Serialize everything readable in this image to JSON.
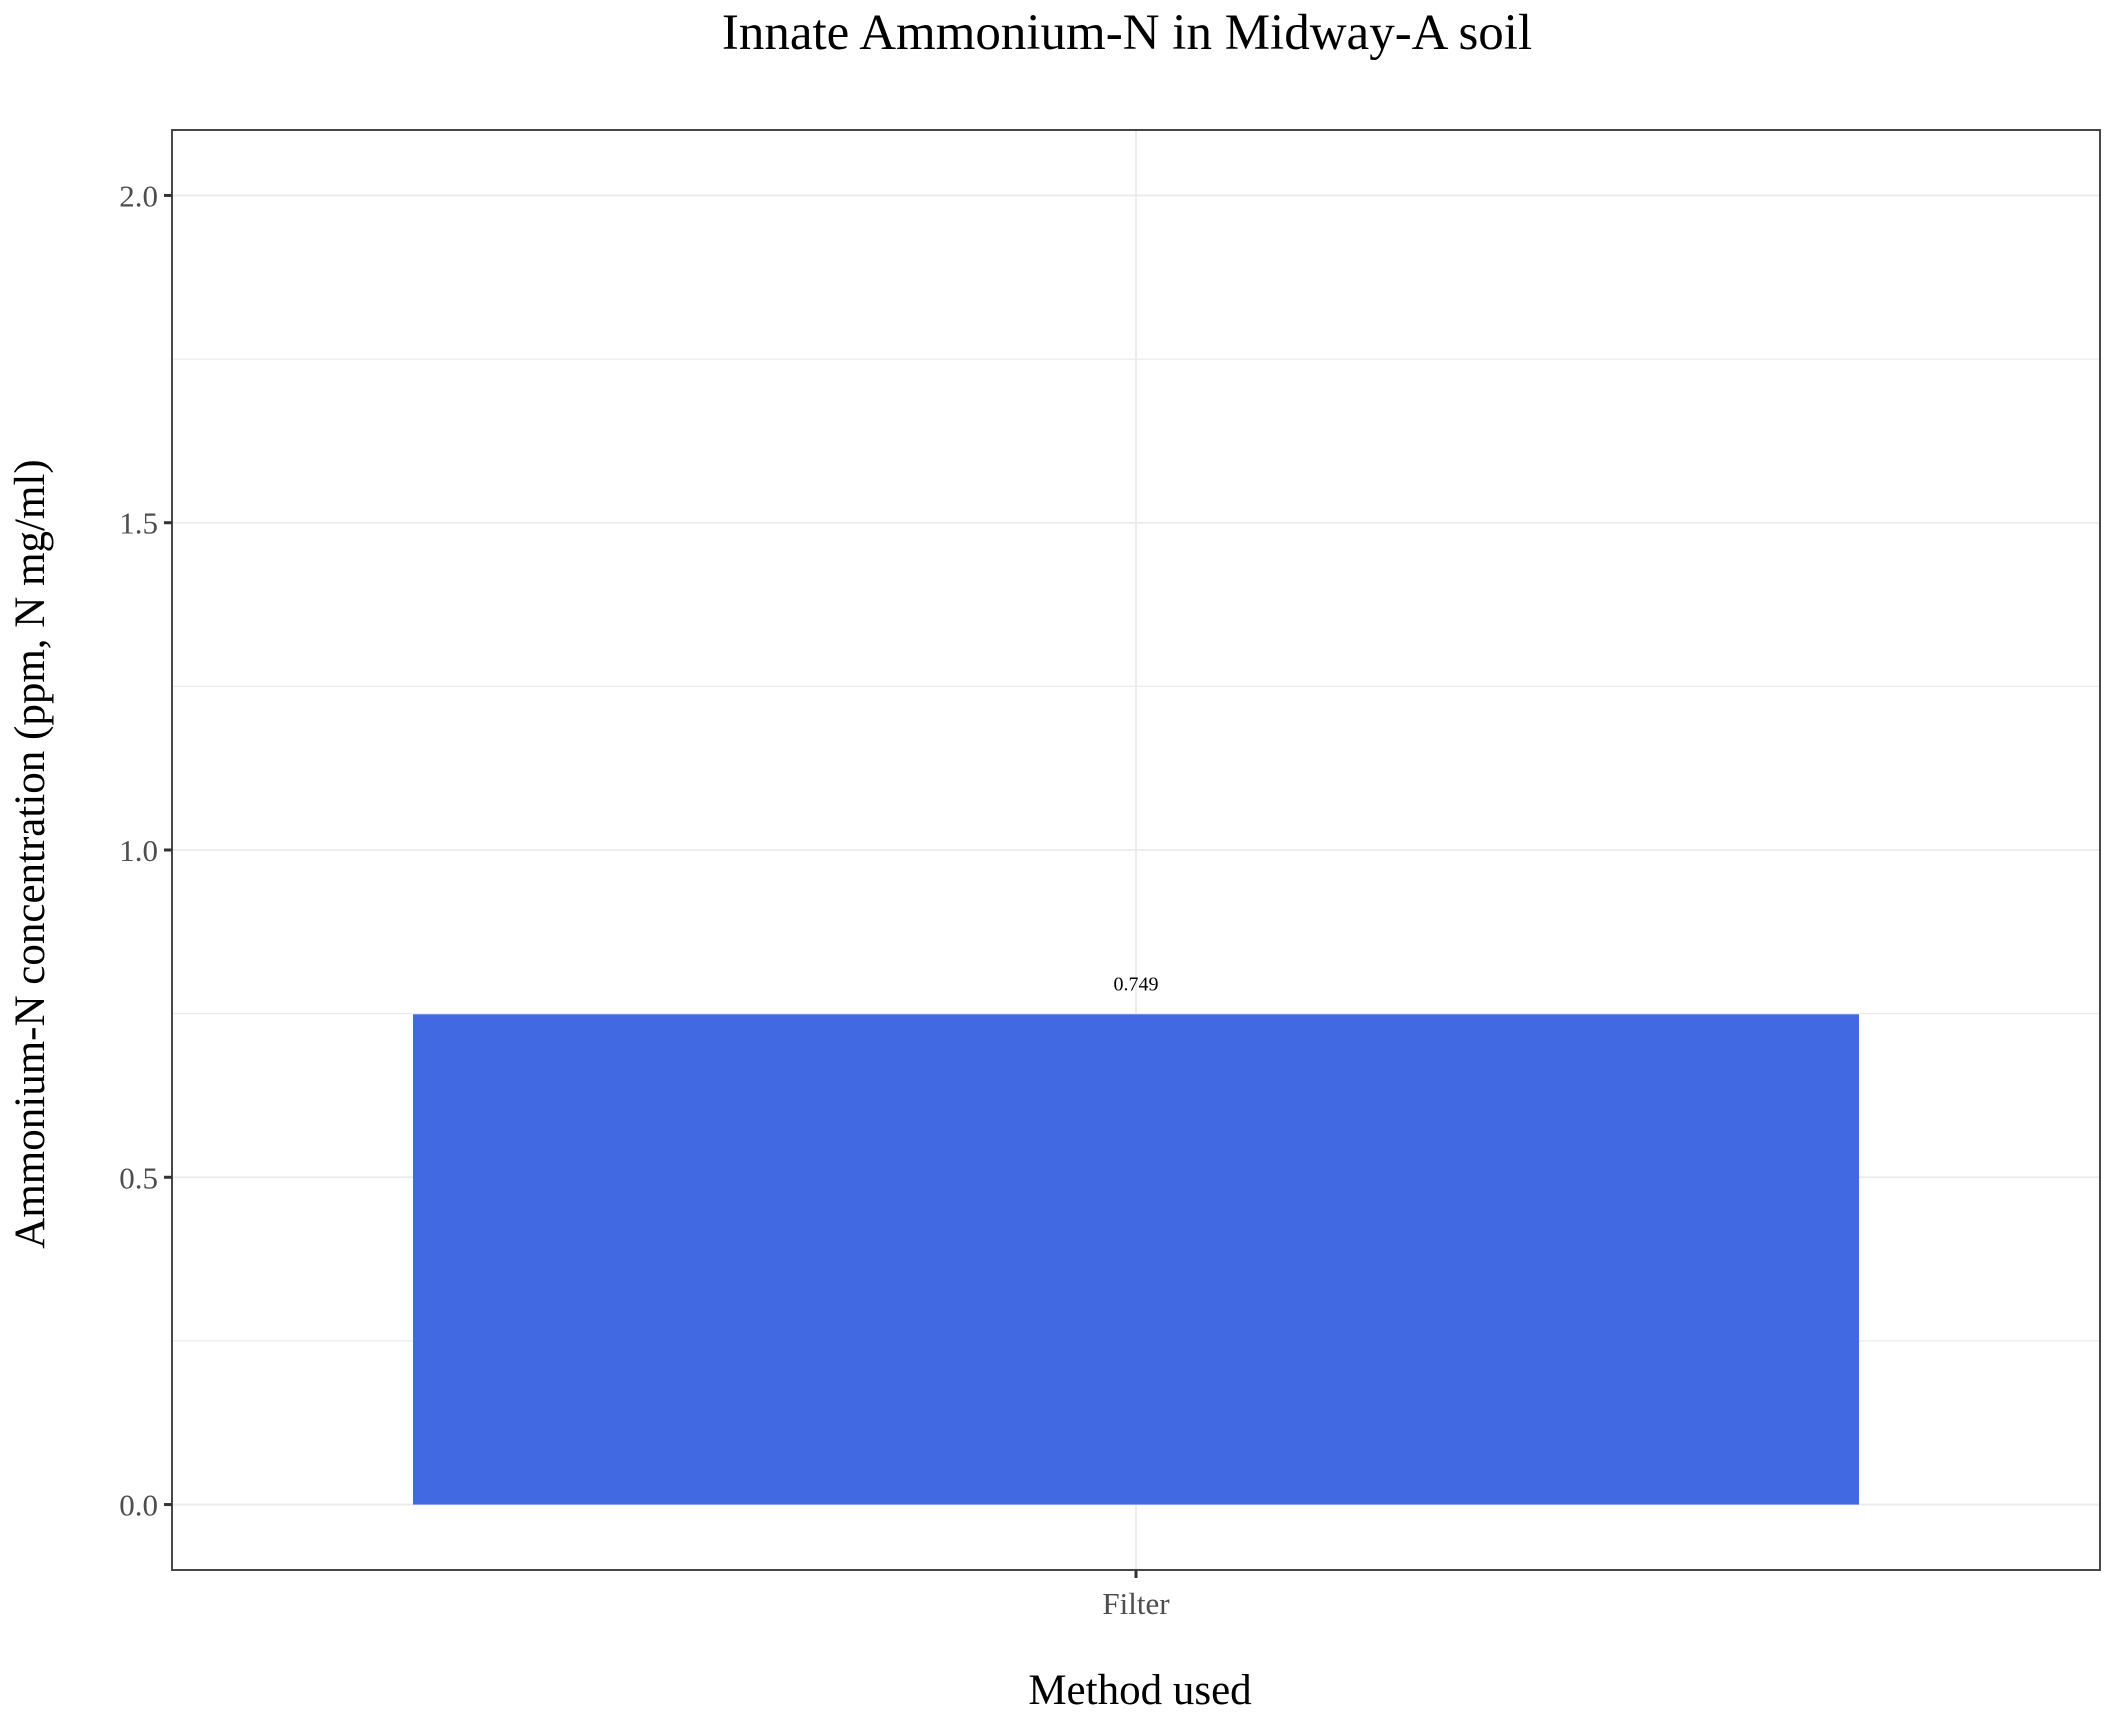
{
  "colors": {
    "bar": "#4169E1",
    "grid": "#ebebeb",
    "panel_border": "#333333",
    "tick": "#333333"
  },
  "chart_data": {
    "type": "bar",
    "title": "Innate Ammonium-N in Midway-A soil",
    "xlabel": "Method used",
    "ylabel": "Ammonium-N concentration (ppm, N mg/ml)",
    "categories": [
      "Filter"
    ],
    "values": [
      0.749
    ],
    "data_labels": [
      "0.749"
    ],
    "ylim": [
      -0.1,
      2.1
    ],
    "yticks": [
      0.0,
      0.5,
      1.0,
      1.5,
      2.0
    ],
    "ytick_labels": [
      "0.0",
      "0.5",
      "1.0",
      "1.5",
      "2.0"
    ],
    "grid": true,
    "legend": "none"
  }
}
